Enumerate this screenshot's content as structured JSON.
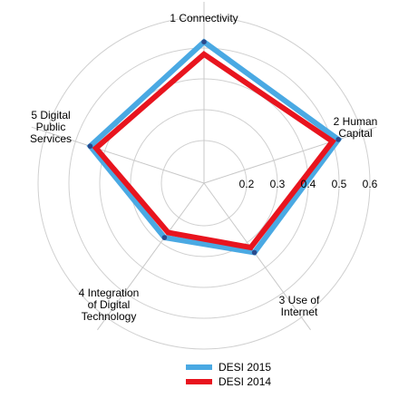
{
  "chart_data": {
    "type": "radar",
    "axes": [
      [
        "1 Connectivity"
      ],
      [
        "2 Human",
        "Capital"
      ],
      [
        "3 Use of",
        "Internet"
      ],
      [
        "4 Integration",
        "of Digital",
        "Technology"
      ],
      [
        "5 Digital",
        "Public",
        "Services"
      ]
    ],
    "r_min": 0.15,
    "r_max": 0.65,
    "ticks": [
      0.2,
      0.3,
      0.4,
      0.5,
      0.6
    ],
    "tick_labels": [
      "0.2",
      "0.3",
      "0.4",
      "0.5",
      "0.6"
    ],
    "grid": true,
    "legend_position": "bottom",
    "series": [
      {
        "name": "DESI 2015",
        "color": "#4aa9e3",
        "values": [
          0.52,
          0.52,
          0.34,
          0.28,
          0.45
        ],
        "markers": true
      },
      {
        "name": "DESI 2014",
        "color": "#e8141e",
        "values": [
          0.48,
          0.5,
          0.32,
          0.26,
          0.43
        ],
        "markers": false
      }
    ],
    "marker_color": "#2a4a8c"
  }
}
